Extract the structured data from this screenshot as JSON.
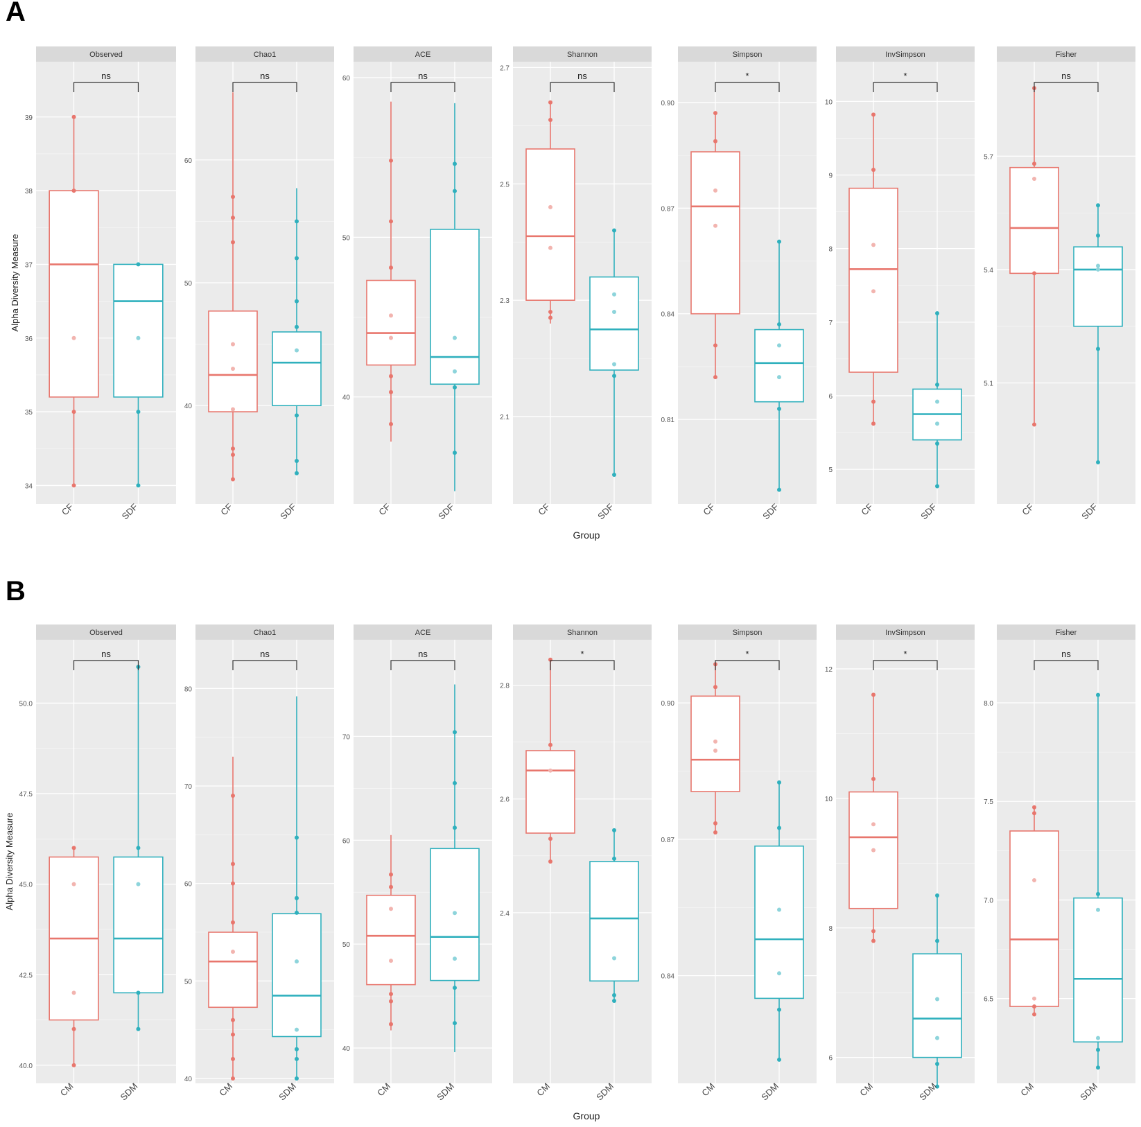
{
  "colors": {
    "group1": "#e8766d",
    "group2": "#2fb0bd",
    "panel_bg": "#ebebeb",
    "strip_bg": "#d9d9d9",
    "grid": "#ffffff",
    "bracket": "#333333"
  },
  "chart_data": [
    {
      "type": "box",
      "panel_label": "A",
      "xlabel": "Group",
      "ylabel": "Alpha Diversity Measure",
      "groups": [
        "CF",
        "SDF"
      ],
      "facets": [
        {
          "title": "Observed",
          "sig": "ns",
          "ylim": [
            33.75,
            39.75
          ],
          "yticks": [
            34,
            35,
            36,
            37,
            38,
            39
          ],
          "ytick_labels": [
            "34",
            "35",
            "36",
            "37",
            "38",
            "39"
          ],
          "boxes": [
            {
              "group": "CF",
              "min": 34,
              "q1": 35.2,
              "median": 37,
              "q3": 38,
              "max": 39,
              "points": [
                34,
                35,
                36,
                38,
                39
              ]
            },
            {
              "group": "SDF",
              "min": 34,
              "q1": 35.2,
              "median": 36.5,
              "q3": 37,
              "max": 37,
              "points": [
                34,
                35,
                36,
                37
              ]
            }
          ]
        },
        {
          "title": "Chao1",
          "sig": "ns",
          "ylim": [
            32,
            68
          ],
          "yticks": [
            40,
            50,
            60
          ],
          "ytick_labels": [
            "40",
            "50",
            "60"
          ],
          "boxes": [
            {
              "group": "CF",
              "min": 34,
              "q1": 39.5,
              "median": 42.5,
              "q3": 47.7,
              "max": 65.5,
              "points": [
                34,
                36,
                36.5,
                39.7,
                43,
                45,
                53.3,
                55.3,
                57
              ]
            },
            {
              "group": "SDF",
              "min": 34.5,
              "q1": 40,
              "median": 43.5,
              "q3": 46,
              "max": 57.7,
              "points": [
                34.5,
                35.5,
                39.2,
                44.5,
                46.4,
                48.5,
                52,
                55
              ]
            }
          ]
        },
        {
          "title": "ACE",
          "sig": "ns",
          "ylim": [
            33.3,
            61
          ],
          "yticks": [
            40,
            50,
            60
          ],
          "ytick_labels": [
            "40",
            "50",
            "60"
          ],
          "boxes": [
            {
              "group": "CF",
              "min": 37.2,
              "q1": 42,
              "median": 44,
              "q3": 47.3,
              "max": 58.5,
              "points": [
                38.3,
                40.3,
                41.3,
                43.7,
                45.1,
                48.1,
                51,
                54.8
              ]
            },
            {
              "group": "SDF",
              "min": 34.1,
              "q1": 40.8,
              "median": 42.5,
              "q3": 50.5,
              "max": 58.4,
              "points": [
                36.5,
                40.6,
                41.6,
                43.7,
                52.9,
                54.6
              ]
            }
          ]
        },
        {
          "title": "Shannon",
          "sig": "ns",
          "ylim": [
            1.95,
            2.71
          ],
          "yticks": [
            2.1,
            2.3,
            2.5,
            2.7
          ],
          "ytick_labels": [
            "2.1",
            "2.3",
            "2.5",
            "2.7"
          ],
          "boxes": [
            {
              "group": "CF",
              "min": 2.26,
              "q1": 2.3,
              "median": 2.41,
              "q3": 2.56,
              "max": 2.64,
              "points": [
                2.27,
                2.28,
                2.39,
                2.46,
                2.61,
                2.64
              ]
            },
            {
              "group": "SDF",
              "min": 2.0,
              "q1": 2.18,
              "median": 2.25,
              "q3": 2.34,
              "max": 2.42,
              "points": [
                2.0,
                2.17,
                2.19,
                2.28,
                2.31,
                2.42
              ]
            }
          ]
        },
        {
          "title": "Simpson",
          "sig": "*",
          "ylim": [
            0.786,
            0.9116
          ],
          "yticks": [
            0.81,
            0.84,
            0.87,
            0.9
          ],
          "ytick_labels": [
            "0.81",
            "0.84",
            "0.87",
            "0.90"
          ],
          "boxes": [
            {
              "group": "CF",
              "min": 0.822,
              "q1": 0.84,
              "median": 0.8705,
              "q3": 0.886,
              "max": 0.897,
              "points": [
                0.822,
                0.831,
                0.865,
                0.875,
                0.889,
                0.897
              ]
            },
            {
              "group": "SDF",
              "min": 0.79,
              "q1": 0.815,
              "median": 0.826,
              "q3": 0.8355,
              "max": 0.8605,
              "points": [
                0.79,
                0.813,
                0.822,
                0.831,
                0.837,
                0.8605
              ]
            }
          ]
        },
        {
          "title": "InvSimpson",
          "sig": "*",
          "ylim": [
            4.53,
            10.54
          ],
          "yticks": [
            5,
            6,
            7,
            8,
            9,
            10
          ],
          "ytick_labels": [
            "5",
            "6",
            "7",
            "8",
            "9",
            "10"
          ],
          "boxes": [
            {
              "group": "CF",
              "min": 5.62,
              "q1": 6.32,
              "median": 7.72,
              "q3": 8.82,
              "max": 9.82,
              "points": [
                5.62,
                5.92,
                7.42,
                8.05,
                9.07,
                9.82
              ]
            },
            {
              "group": "SDF",
              "min": 4.77,
              "q1": 5.4,
              "median": 5.75,
              "q3": 6.09,
              "max": 7.12,
              "points": [
                4.77,
                5.35,
                5.62,
                5.92,
                6.15,
                7.12
              ]
            }
          ]
        },
        {
          "title": "Fisher",
          "sig": "ns",
          "ylim": [
            4.78,
            5.95
          ],
          "yticks": [
            5.1,
            5.4,
            5.7
          ],
          "ytick_labels": [
            "5.1",
            "5.4",
            "5.7"
          ],
          "boxes": [
            {
              "group": "CF",
              "min": 4.99,
              "q1": 5.39,
              "median": 5.51,
              "q3": 5.67,
              "max": 5.88,
              "points": [
                4.99,
                5.39,
                5.64,
                5.68,
                5.88
              ]
            },
            {
              "group": "SDF",
              "min": 4.89,
              "q1": 5.25,
              "median": 5.4,
              "q3": 5.46,
              "max": 5.57,
              "points": [
                4.89,
                5.19,
                5.4,
                5.41,
                5.49,
                5.57
              ]
            }
          ]
        }
      ]
    },
    {
      "type": "box",
      "panel_label": "B",
      "xlabel": "Group",
      "ylabel": "Alpha Diversity Measure",
      "groups": [
        "CM",
        "SDM"
      ],
      "facets": [
        {
          "title": "Observed",
          "sig": "ns",
          "ylim": [
            39.5,
            51.75
          ],
          "yticks": [
            40.0,
            42.5,
            45.0,
            47.5,
            50.0
          ],
          "ytick_labels": [
            "40.0",
            "42.5",
            "45.0",
            "47.5",
            "50.0"
          ],
          "boxes": [
            {
              "group": "CM",
              "min": 40,
              "q1": 41.25,
              "median": 43.5,
              "q3": 45.75,
              "max": 46,
              "points": [
                40,
                41,
                42,
                45,
                46
              ]
            },
            {
              "group": "SDM",
              "min": 41,
              "q1": 42,
              "median": 43.5,
              "q3": 45.75,
              "max": 51,
              "points": [
                41,
                42,
                45,
                46,
                51
              ]
            }
          ]
        },
        {
          "title": "Chao1",
          "sig": "ns",
          "ylim": [
            39.5,
            85
          ],
          "yticks": [
            40,
            50,
            60,
            70,
            80
          ],
          "ytick_labels": [
            "40",
            "50",
            "60",
            "70",
            "80"
          ],
          "boxes": [
            {
              "group": "CM",
              "min": 40,
              "q1": 47.3,
              "median": 52,
              "q3": 55,
              "max": 73,
              "points": [
                40,
                42,
                44.5,
                46,
                53,
                56,
                60,
                62,
                69
              ]
            },
            {
              "group": "SDM",
              "min": 40,
              "q1": 44.3,
              "median": 48.5,
              "q3": 56.9,
              "max": 79.2,
              "points": [
                40,
                42,
                43,
                45,
                52,
                57,
                58.5,
                64.7
              ]
            }
          ]
        },
        {
          "title": "ACE",
          "sig": "ns",
          "ylim": [
            36.6,
            79.3
          ],
          "yticks": [
            40,
            50,
            60,
            70
          ],
          "ytick_labels": [
            "40",
            "50",
            "60",
            "70"
          ],
          "boxes": [
            {
              "group": "CM",
              "min": 41.7,
              "q1": 46.1,
              "median": 50.8,
              "q3": 54.7,
              "max": 60.5,
              "points": [
                42.3,
                44.5,
                45.2,
                48.4,
                53.4,
                55.5,
                56.7
              ]
            },
            {
              "group": "SDM",
              "min": 39.6,
              "q1": 46.5,
              "median": 50.7,
              "q3": 59.2,
              "max": 75,
              "points": [
                42.4,
                45.8,
                48.6,
                53,
                61.2,
                65.5,
                70.4
              ]
            }
          ]
        },
        {
          "title": "Shannon",
          "sig": "*",
          "ylim": [
            2.1,
            2.88
          ],
          "yticks": [
            2.4,
            2.6,
            2.8
          ],
          "ytick_labels": [
            "2.4",
            "2.6",
            "2.8"
          ],
          "boxes": [
            {
              "group": "CM",
              "min": 2.49,
              "q1": 2.54,
              "median": 2.65,
              "q3": 2.685,
              "max": 2.845,
              "points": [
                2.49,
                2.53,
                2.65,
                2.695,
                2.845
              ]
            },
            {
              "group": "SDM",
              "min": 2.245,
              "q1": 2.28,
              "median": 2.39,
              "q3": 2.49,
              "max": 2.545,
              "points": [
                2.245,
                2.255,
                2.32,
                2.495,
                2.545
              ]
            }
          ]
        },
        {
          "title": "Simpson",
          "sig": "*",
          "ylim": [
            0.8163,
            0.9139
          ],
          "yticks": [
            0.84,
            0.87,
            0.9
          ],
          "ytick_labels": [
            "0.84",
            "0.87",
            "0.90"
          ],
          "boxes": [
            {
              "group": "CM",
              "min": 0.8715,
              "q1": 0.8805,
              "median": 0.8875,
              "q3": 0.9015,
              "max": 0.9085,
              "points": [
                0.8715,
                0.8735,
                0.8895,
                0.8915,
                0.9035,
                0.9085
              ]
            },
            {
              "group": "SDM",
              "min": 0.8215,
              "q1": 0.835,
              "median": 0.848,
              "q3": 0.8685,
              "max": 0.8825,
              "points": [
                0.8215,
                0.8325,
                0.8405,
                0.8545,
                0.8725,
                0.8825
              ]
            }
          ]
        },
        {
          "title": "InvSimpson",
          "sig": "*",
          "ylim": [
            5.6,
            12.45
          ],
          "yticks": [
            6,
            8,
            10,
            12
          ],
          "ytick_labels": [
            "6",
            "8",
            "10",
            "12"
          ],
          "boxes": [
            {
              "group": "CM",
              "min": 7.8,
              "q1": 8.3,
              "median": 9.4,
              "q3": 10.1,
              "max": 11.6,
              "points": [
                7.8,
                7.95,
                9.2,
                9.6,
                10.3,
                11.6
              ]
            },
            {
              "group": "SDM",
              "min": 5.55,
              "q1": 6,
              "median": 6.6,
              "q3": 7.6,
              "max": 8.5,
              "points": [
                5.55,
                5.9,
                6.3,
                6.9,
                7.8,
                8.5
              ]
            }
          ]
        },
        {
          "title": "Fisher",
          "sig": "ns",
          "ylim": [
            6.07,
            8.32
          ],
          "yticks": [
            6.5,
            7.0,
            7.5,
            8.0
          ],
          "ytick_labels": [
            "6.5",
            "7.0",
            "7.5",
            "8.0"
          ],
          "boxes": [
            {
              "group": "CM",
              "min": 6.42,
              "q1": 6.46,
              "median": 6.8,
              "q3": 7.35,
              "max": 7.47,
              "points": [
                6.42,
                6.46,
                6.5,
                7.1,
                7.44,
                7.47
              ]
            },
            {
              "group": "SDM",
              "min": 6.15,
              "q1": 6.28,
              "median": 6.6,
              "q3": 7.01,
              "max": 8.04,
              "points": [
                6.15,
                6.24,
                6.3,
                6.95,
                7.03,
                8.04
              ]
            }
          ]
        }
      ]
    }
  ]
}
